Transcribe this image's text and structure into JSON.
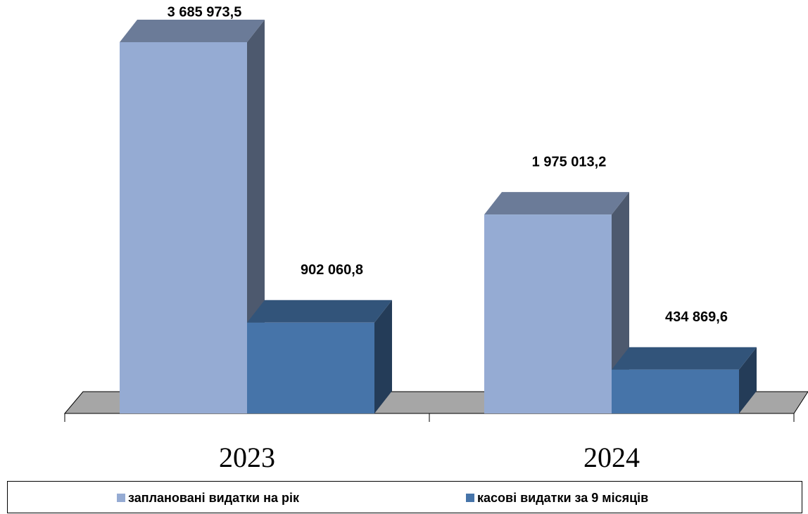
{
  "chart_data": {
    "type": "bar3d",
    "categories": [
      "2023",
      "2024"
    ],
    "series": [
      {
        "name": "заплановані видатки на рік",
        "color": "#95abd3",
        "values": [
          3685973.5,
          1975013.2
        ],
        "value_labels": [
          "3 685 973,5",
          "1 975 013,2"
        ]
      },
      {
        "name": "касові видатки за 9 місяців",
        "color": "#4674a9",
        "values": [
          902060.8,
          434869.6
        ],
        "value_labels": [
          "902 060,8",
          "434 869,6"
        ]
      }
    ],
    "legend": "bottom"
  }
}
